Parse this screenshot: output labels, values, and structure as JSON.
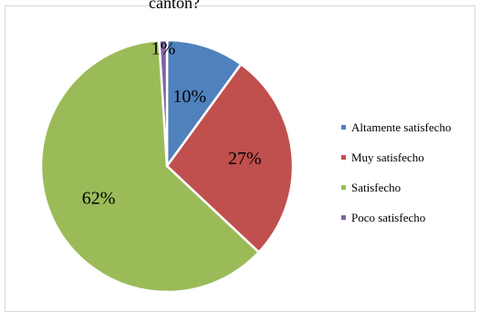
{
  "chart_data": {
    "type": "pie",
    "title": "cantón?",
    "categories": [
      "Altamente satisfecho",
      "Muy satisfecho",
      "Satisfecho",
      "Poco satisfecho"
    ],
    "values": [
      10,
      27,
      62,
      1
    ],
    "value_labels": [
      "10%",
      "27%",
      "62%",
      "1%"
    ],
    "colors": [
      "#4f81bd",
      "#c0504d",
      "#9bbb59",
      "#8064a2"
    ],
    "legend_position": "right",
    "start_angle_deg": 0,
    "direction": "clockwise"
  }
}
